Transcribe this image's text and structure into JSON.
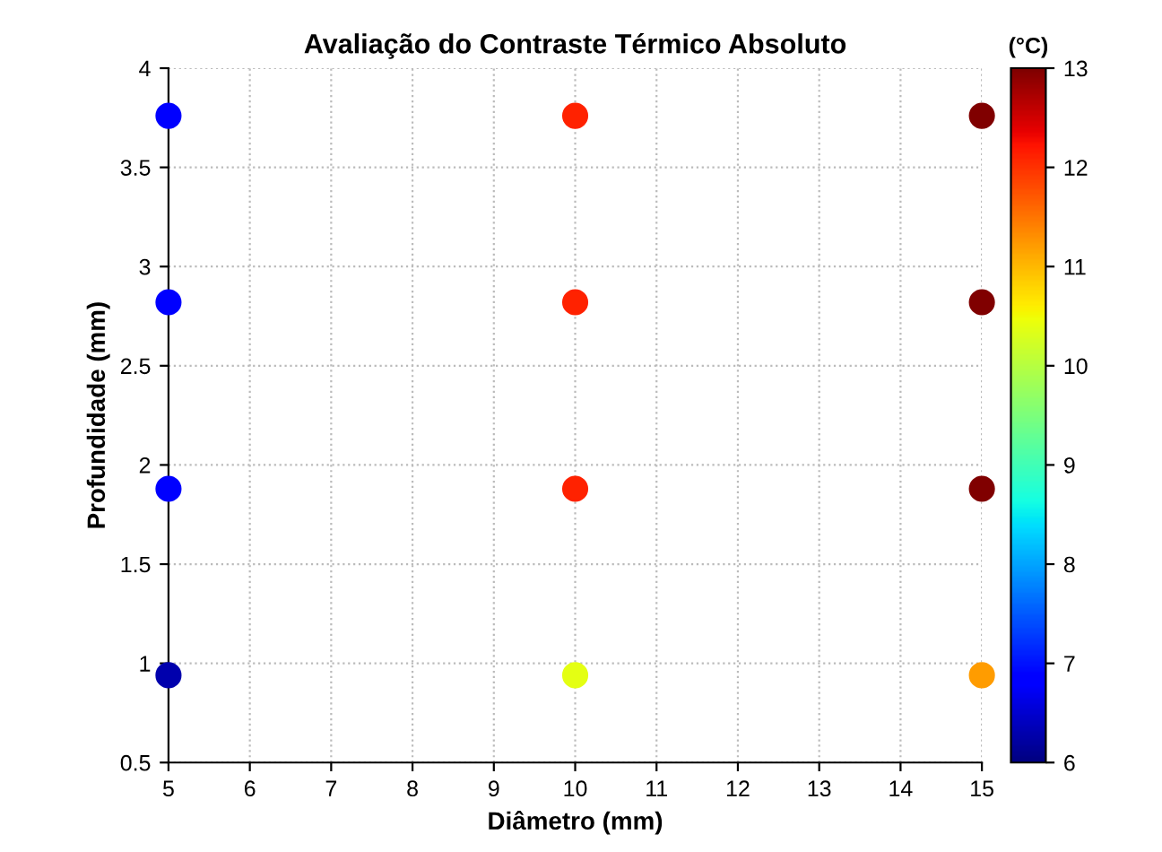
{
  "chart_data": {
    "type": "scatter",
    "title": "Avaliação do Contraste Térmico Absoluto",
    "xlabel": "Diâmetro (mm)",
    "ylabel": "Profundidade (mm)",
    "clabel": "(°C)",
    "x": [
      5,
      5,
      5,
      5,
      10,
      10,
      10,
      10,
      15,
      15,
      15,
      15
    ],
    "values": [
      3.76,
      2.82,
      1.88,
      0.94,
      3.76,
      2.82,
      1.88,
      0.94,
      3.76,
      2.82,
      1.88,
      0.94
    ],
    "cvalues": [
      6.8,
      6.8,
      6.8,
      6.3,
      12.1,
      12.1,
      12.1,
      10.4,
      13,
      13,
      13,
      11.2
    ],
    "clim": [
      6,
      13
    ],
    "cticks": [
      6,
      7,
      8,
      9,
      10,
      11,
      12,
      13
    ],
    "xlim": [
      5,
      15
    ],
    "xticks": [
      5,
      6,
      7,
      8,
      9,
      10,
      11,
      12,
      13,
      14,
      15
    ],
    "ylim": [
      0.5,
      4
    ],
    "yticks": [
      0.5,
      1,
      1.5,
      2,
      2.5,
      3,
      3.5,
      4
    ],
    "grid": true,
    "marker": "circle"
  }
}
